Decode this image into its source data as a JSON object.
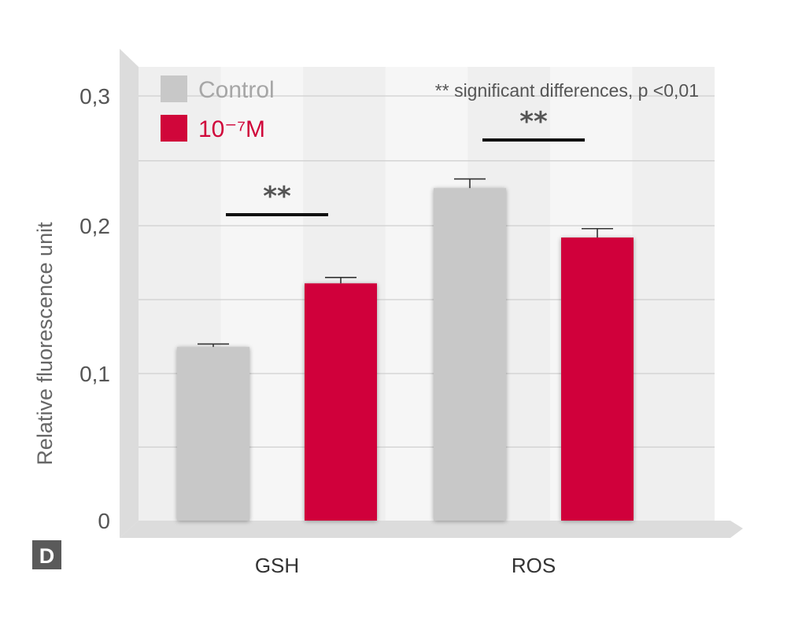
{
  "chart_data": {
    "type": "bar",
    "panel_label": "D",
    "ylabel": "Relative fluorescence unit",
    "categories": [
      "GSH",
      "ROS"
    ],
    "series": [
      {
        "name": "Control",
        "color": "#c8c8c8",
        "values": [
          0.118,
          0.229
        ],
        "errors": [
          0.002,
          0.007
        ]
      },
      {
        "name": "10⁻⁷M",
        "color": "#d0063a",
        "values": [
          0.161,
          0.192
        ],
        "errors": [
          0.004,
          0.006
        ]
      }
    ],
    "ylim": [
      0,
      0.33
    ],
    "yticks": [
      {
        "value": 0,
        "label": "0"
      },
      {
        "value": 0.1,
        "label": "0,1"
      },
      {
        "value": 0.2,
        "label": "0,2"
      },
      {
        "value": 0.3,
        "label": "0,3"
      }
    ],
    "grid": true,
    "legend_position": "top-left",
    "annotation": "** significant differences, p <0,01",
    "significance": [
      {
        "category": "GSH",
        "label": "**"
      },
      {
        "category": "ROS",
        "label": "**"
      }
    ]
  }
}
